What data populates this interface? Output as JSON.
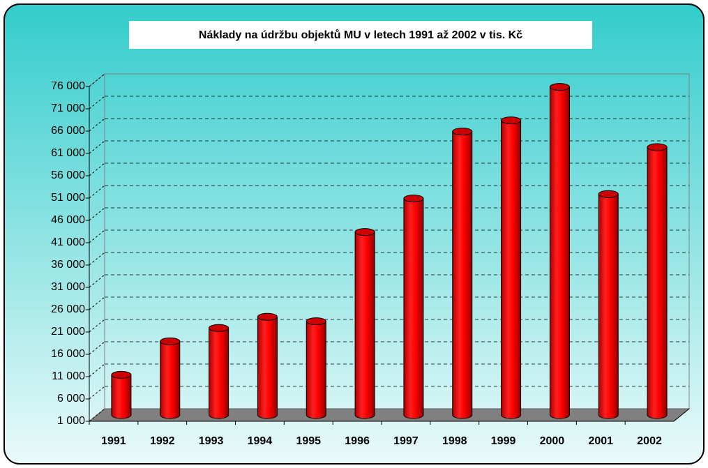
{
  "chart_data": {
    "type": "bar3d",
    "title": "Náklady na údržbu objektů MU v letech  1991 až 2002 v tis. Kč",
    "categories": [
      "1991",
      "1992",
      "1993",
      "1994",
      "1995",
      "1996",
      "1997",
      "1998",
      "1999",
      "2000",
      "2001",
      "2002"
    ],
    "values": [
      10000,
      17500,
      20500,
      23000,
      22000,
      42000,
      49500,
      64500,
      67000,
      74500,
      50500,
      61000
    ],
    "color": "#ff0000",
    "ylim": [
      1000,
      76000
    ],
    "yticks": [
      {
        "value": 1000,
        "label": "1 000"
      },
      {
        "value": 6000,
        "label": "6 000"
      },
      {
        "value": 11000,
        "label": "11 000"
      },
      {
        "value": 16000,
        "label": "16 000"
      },
      {
        "value": 21000,
        "label": "21 000"
      },
      {
        "value": 26000,
        "label": "26 000"
      },
      {
        "value": 31000,
        "label": "31 000"
      },
      {
        "value": 36000,
        "label": "36 000"
      },
      {
        "value": 41000,
        "label": "41 000"
      },
      {
        "value": 46000,
        "label": "46 000"
      },
      {
        "value": 51000,
        "label": "51 000"
      },
      {
        "value": 56000,
        "label": "56 000"
      },
      {
        "value": 61000,
        "label": "61 000"
      },
      {
        "value": 66000,
        "label": "66 000"
      },
      {
        "value": 71000,
        "label": "71 000"
      },
      {
        "value": 76000,
        "label": "76 000"
      }
    ],
    "grid": true
  }
}
